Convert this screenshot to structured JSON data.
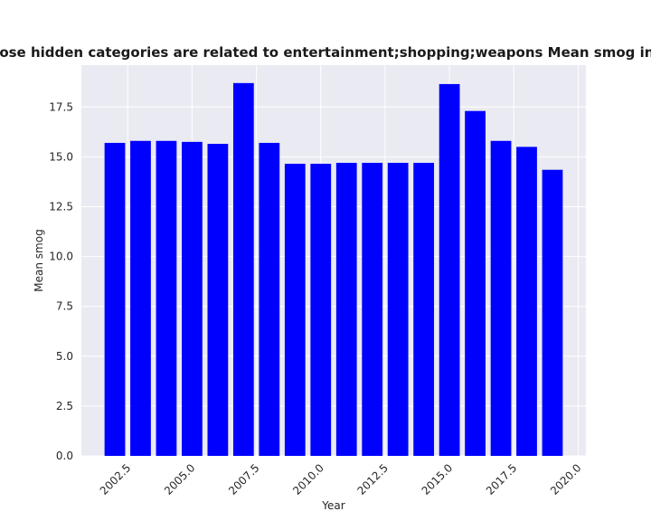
{
  "chart_data": {
    "type": "bar",
    "title": "Chart for websites whose hidden categories are related to entertainment;shopping;weapons Mean smog in privacy policies by year",
    "xlabel": "Year",
    "ylabel": "Mean smog",
    "x": [
      2002,
      2003,
      2004,
      2005,
      2006,
      2007,
      2008,
      2009,
      2010,
      2011,
      2012,
      2013,
      2014,
      2015,
      2016,
      2017,
      2018,
      2019
    ],
    "values": [
      15.7,
      15.8,
      15.8,
      15.75,
      15.65,
      18.7,
      15.7,
      14.65,
      14.65,
      14.7,
      14.7,
      14.7,
      14.7,
      18.65,
      17.3,
      15.8,
      15.5,
      14.35
    ],
    "xticks": [
      "2002.5",
      "2005.0",
      "2007.5",
      "2010.0",
      "2012.5",
      "2015.0",
      "2017.5",
      "2020.0"
    ],
    "yticks": [
      "0.0",
      "2.5",
      "5.0",
      "7.5",
      "10.0",
      "12.5",
      "15.0",
      "17.5"
    ],
    "xlim": [
      2000.7,
      2020.3
    ],
    "ylim": [
      0,
      19.6
    ],
    "bar_color": "#0000ff",
    "background_color": "#eaeaf2",
    "grid": true
  }
}
